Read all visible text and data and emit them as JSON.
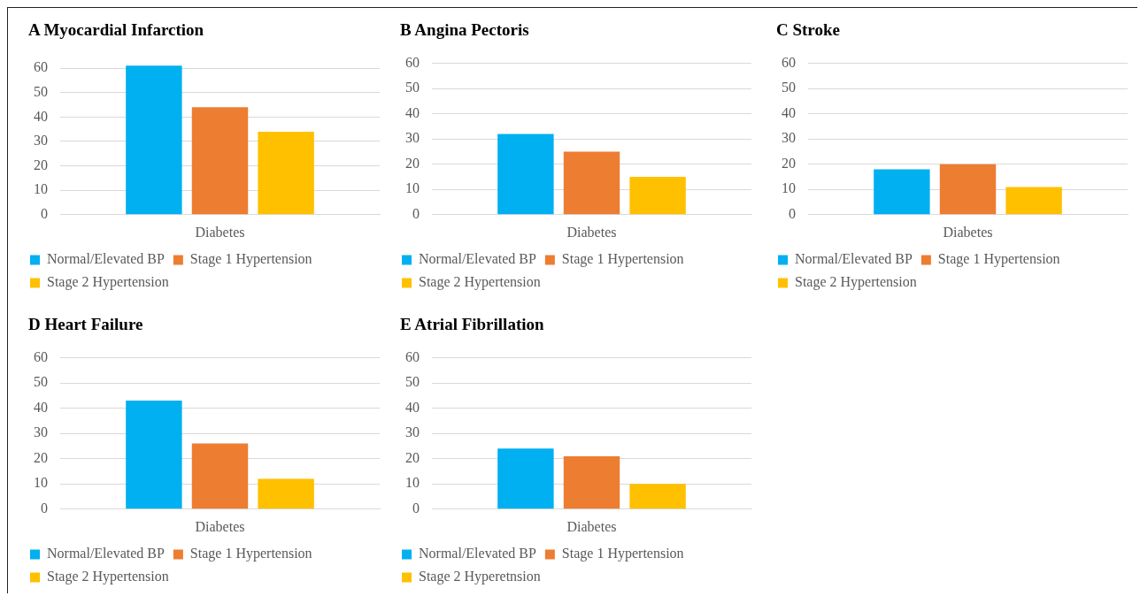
{
  "chart_data": [
    {
      "type": "bar",
      "title": "A Myocardial Infarction",
      "categories": [
        "Diabetes"
      ],
      "ylim": [
        0,
        62
      ],
      "yticks": [
        0,
        10,
        20,
        30,
        40,
        50,
        60
      ],
      "grid": "y",
      "legend": "bottom",
      "series": [
        {
          "name": "Normal/Elevated BP",
          "color": "#00b0f0",
          "values": [
            61
          ]
        },
        {
          "name": "Stage 1 Hypertension",
          "color": "#ed7d31",
          "values": [
            44
          ]
        },
        {
          "name": "Stage 2 Hypertension",
          "color": "#ffc000",
          "values": [
            34
          ]
        }
      ]
    },
    {
      "type": "bar",
      "title": "B Angina Pectoris",
      "categories": [
        "Diabetes"
      ],
      "ylim": [
        0,
        60
      ],
      "yticks": [
        0,
        10,
        20,
        30,
        40,
        50,
        60
      ],
      "grid": "y",
      "legend": "bottom",
      "series": [
        {
          "name": "Normal/Elevated BP",
          "color": "#00b0f0",
          "values": [
            32
          ]
        },
        {
          "name": "Stage 1 Hypertension",
          "color": "#ed7d31",
          "values": [
            25
          ]
        },
        {
          "name": "Stage 2 Hypertension",
          "color": "#ffc000",
          "values": [
            15
          ]
        }
      ]
    },
    {
      "type": "bar",
      "title": "C Stroke",
      "categories": [
        "Diabetes"
      ],
      "ylim": [
        0,
        60
      ],
      "yticks": [
        0,
        10,
        20,
        30,
        40,
        50,
        60
      ],
      "grid": "y",
      "legend": "bottom",
      "series": [
        {
          "name": "Normal/Elevated BP",
          "color": "#00b0f0",
          "values": [
            18
          ]
        },
        {
          "name": "Stage 1 Hypertension",
          "color": "#ed7d31",
          "values": [
            20
          ]
        },
        {
          "name": "Stage 2 Hypertension",
          "color": "#ffc000",
          "values": [
            11
          ]
        }
      ]
    },
    {
      "type": "bar",
      "title": "D Heart Failure",
      "categories": [
        "Diabetes"
      ],
      "ylim": [
        0,
        60
      ],
      "yticks": [
        0,
        10,
        20,
        30,
        40,
        50,
        60
      ],
      "grid": "y",
      "legend": "bottom",
      "series": [
        {
          "name": "Normal/Elevated BP",
          "color": "#00b0f0",
          "values": [
            43
          ]
        },
        {
          "name": "Stage 1 Hypertension",
          "color": "#ed7d31",
          "values": [
            26
          ]
        },
        {
          "name": "Stage 2 Hypertension",
          "color": "#ffc000",
          "values": [
            12
          ]
        }
      ]
    },
    {
      "type": "bar",
      "title": "E Atrial Fibrillation",
      "categories": [
        "Diabetes"
      ],
      "ylim": [
        0,
        60
      ],
      "yticks": [
        0,
        10,
        20,
        30,
        40,
        50,
        60
      ],
      "grid": "y",
      "legend": "bottom",
      "series": [
        {
          "name": "Normal/Elevated BP",
          "color": "#00b0f0",
          "values": [
            24
          ]
        },
        {
          "name": "Stage 1 Hypertension",
          "color": "#ed7d31",
          "values": [
            21
          ]
        },
        {
          "name": "Stage 2 Hyperetnsion",
          "color": "#ffc000",
          "values": [
            10
          ]
        }
      ]
    }
  ]
}
